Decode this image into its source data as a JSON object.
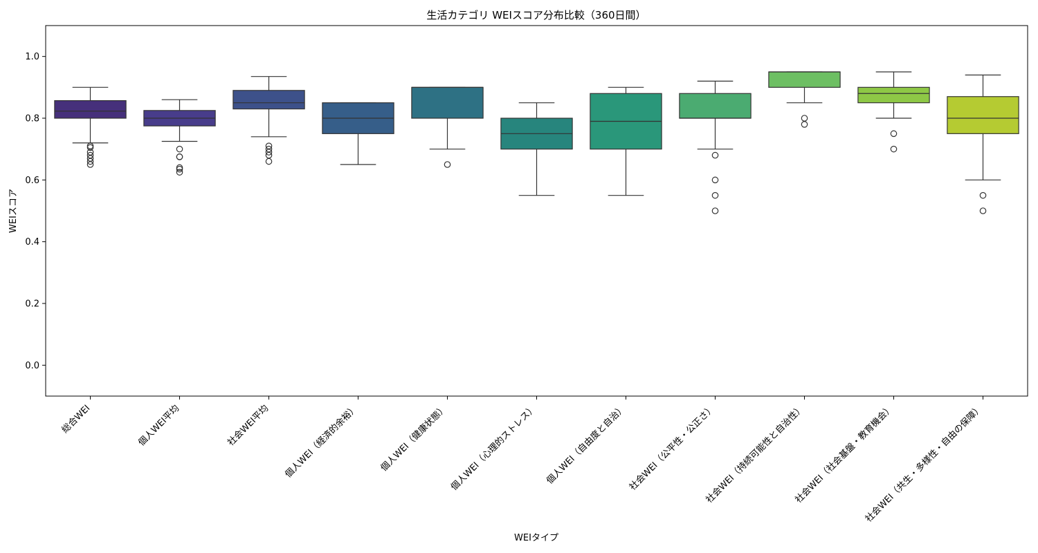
{
  "chart_data": {
    "type": "box",
    "title": "生活カテゴリ WEIスコア分布比較（360日間）",
    "xlabel": "WEIタイプ",
    "ylabel": "WEIスコア",
    "ylim": [
      -0.1,
      1.1
    ],
    "yticks": [
      0.0,
      0.2,
      0.4,
      0.6,
      0.8,
      1.0
    ],
    "ytick_labels": [
      "0.0",
      "0.2",
      "0.4",
      "0.6",
      "0.8",
      "1.0"
    ],
    "grid": false,
    "legend": "none",
    "categories": [
      "総合WEI",
      "個人WEI平均",
      "社会WEI平均",
      "個人WEI（経済的余裕）",
      "個人WEI（健康状態）",
      "個人WEI（心理的ストレス）",
      "個人WEI（自由度と自治）",
      "社会WEI（公平性・公正さ）",
      "社会WEI（持続可能性と自治性）",
      "社会WEI（社会基盤・教育機会）",
      "社会WEI（共生・多様性・自由の保障）"
    ],
    "boxes": [
      {
        "whislo": 0.72,
        "q1": 0.8,
        "med": 0.823,
        "q3": 0.857,
        "whishi": 0.9,
        "fliers": [
          0.71,
          0.705,
          0.69,
          0.68,
          0.67,
          0.66,
          0.65
        ],
        "color": "#46307b"
      },
      {
        "whislo": 0.725,
        "q1": 0.775,
        "med": 0.8,
        "q3": 0.825,
        "whishi": 0.86,
        "fliers": [
          0.7,
          0.675,
          0.675,
          0.64,
          0.635,
          0.625
        ],
        "color": "#483d8b"
      },
      {
        "whislo": 0.74,
        "q1": 0.83,
        "med": 0.85,
        "q3": 0.89,
        "whishi": 0.935,
        "fliers": [
          0.71,
          0.7,
          0.69,
          0.68,
          0.66
        ],
        "color": "#3d518a"
      },
      {
        "whislo": 0.65,
        "q1": 0.75,
        "med": 0.8,
        "q3": 0.85,
        "whishi": 0.85,
        "fliers": [],
        "color": "#365e89"
      },
      {
        "whislo": 0.7,
        "q1": 0.8,
        "med": 0.9,
        "q3": 0.9,
        "whishi": 0.9,
        "fliers": [
          0.65
        ],
        "color": "#2e7184"
      },
      {
        "whislo": 0.55,
        "q1": 0.7,
        "med": 0.75,
        "q3": 0.8,
        "whishi": 0.85,
        "fliers": [],
        "color": "#27857d"
      },
      {
        "whislo": 0.55,
        "q1": 0.7,
        "med": 0.79,
        "q3": 0.88,
        "whishi": 0.9,
        "fliers": [],
        "color": "#2a977a"
      },
      {
        "whislo": 0.7,
        "q1": 0.8,
        "med": 0.8,
        "q3": 0.88,
        "whishi": 0.92,
        "fliers": [
          0.68,
          0.6,
          0.55,
          0.5
        ],
        "color": "#4bab71"
      },
      {
        "whislo": 0.85,
        "q1": 0.9,
        "med": 0.95,
        "q3": 0.95,
        "whishi": 0.95,
        "fliers": [
          0.8,
          0.78
        ],
        "color": "#6dbf63"
      },
      {
        "whislo": 0.8,
        "q1": 0.85,
        "med": 0.88,
        "q3": 0.9,
        "whishi": 0.95,
        "fliers": [
          0.75,
          0.7
        ],
        "color": "#8ec846"
      },
      {
        "whislo": 0.6,
        "q1": 0.75,
        "med": 0.8,
        "q3": 0.87,
        "whishi": 0.94,
        "fliers": [
          0.55,
          0.5
        ],
        "color": "#b5cb32"
      }
    ]
  }
}
